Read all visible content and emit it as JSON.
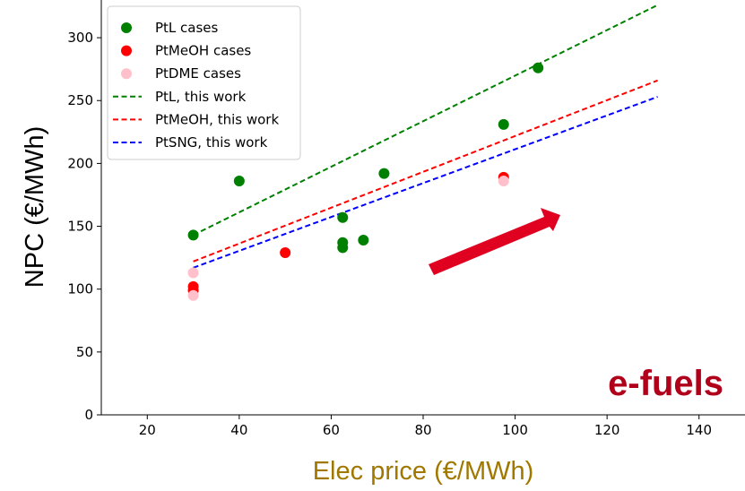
{
  "chart_data": {
    "type": "scatter",
    "xlabel": "Elec price (€/MWh)",
    "ylabel": "NPC (€/MWh)",
    "xlim": [
      10,
      150
    ],
    "ylim": [
      0,
      330
    ],
    "xticks": [
      20,
      40,
      60,
      80,
      100,
      120,
      140
    ],
    "yticks": [
      0,
      50,
      100,
      150,
      200,
      250,
      300
    ],
    "grid": false,
    "legend_position": "top-left",
    "scatter_series": [
      {
        "name": "PtL cases",
        "color": "#008000",
        "points": [
          [
            30,
            143
          ],
          [
            40,
            186
          ],
          [
            62.5,
            157
          ],
          [
            62.5,
            137
          ],
          [
            62.5,
            133
          ],
          [
            67,
            139
          ],
          [
            71.5,
            192
          ],
          [
            97.5,
            231
          ],
          [
            105,
            276
          ]
        ]
      },
      {
        "name": "PtMeOH cases",
        "color": "#ff0000",
        "points": [
          [
            30,
            102
          ],
          [
            30,
            99
          ],
          [
            50,
            129
          ],
          [
            97.5,
            189
          ]
        ]
      },
      {
        "name": "PtDME cases",
        "color": "#ffc0cb",
        "points": [
          [
            30,
            113
          ],
          [
            30,
            95
          ],
          [
            97.5,
            186
          ]
        ]
      }
    ],
    "line_series": [
      {
        "name": "PtL, this work",
        "color": "#008000",
        "x": [
          30,
          131
        ],
        "y": [
          143,
          326
        ]
      },
      {
        "name": "PtMeOH, this work",
        "color": "#ff0000",
        "x": [
          30,
          131
        ],
        "y": [
          122,
          266
        ]
      },
      {
        "name": "PtSNG, this work",
        "color": "#0000ff",
        "x": [
          30,
          131
        ],
        "y": [
          117,
          253
        ]
      }
    ],
    "annotation": {
      "text": "e-fuels",
      "color": "#b0001a"
    },
    "arrow_color": "#e00020",
    "xlabel_color": "#a07800"
  }
}
